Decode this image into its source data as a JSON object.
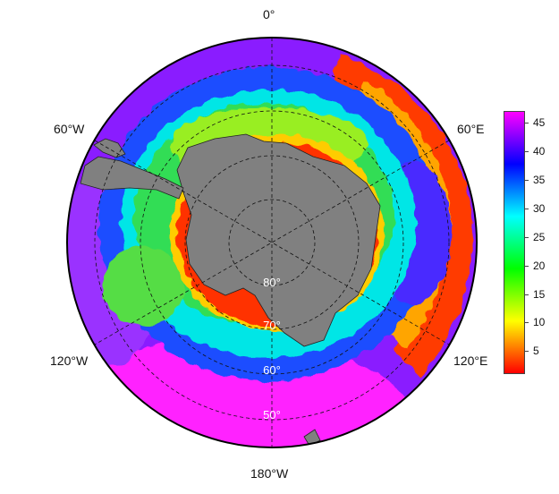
{
  "map": {
    "projection": "south-polar stereographic",
    "longitude_labels": {
      "top": "0°",
      "upper_left": "60°W",
      "upper_right": "60°E",
      "lower_left": "120°W",
      "lower_right": "120°E",
      "bottom": "180°W"
    },
    "latitude_labels": [
      "80°",
      "70°",
      "60°",
      "50°"
    ],
    "land_color": "#808080",
    "graticule_style": "dashed",
    "outer_latitude": 45
  },
  "colorbar": {
    "ticks": [
      "5",
      "10",
      "15",
      "20",
      "25",
      "30",
      "35",
      "40",
      "45"
    ],
    "min": 1,
    "max": 47,
    "palette": [
      "#ff0000",
      "#ff8000",
      "#ffff00",
      "#80ff00",
      "#00ff00",
      "#00ff80",
      "#00ffff",
      "#0080ff",
      "#0000ff",
      "#8000ff",
      "#ff00ff"
    ]
  },
  "field_description_values": {
    "coastal_band": "low (red–orange)",
    "ross_and_weddell_outer": "high (purple–magenta)"
  }
}
